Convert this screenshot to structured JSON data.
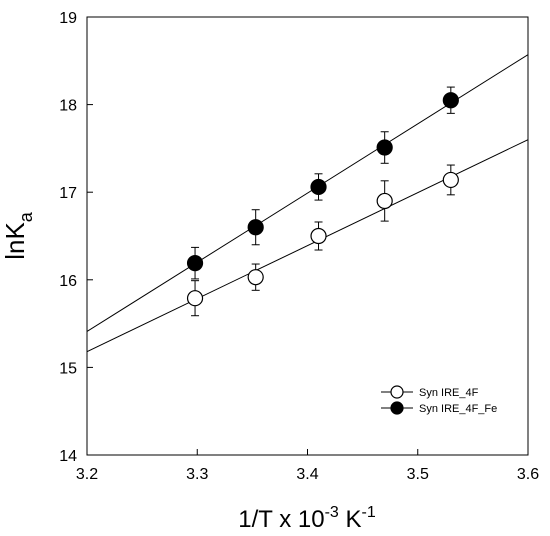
{
  "chart_data": {
    "type": "scatter",
    "xlabel": {
      "base": "1/T x 10",
      "exp": "-3",
      "unit": " K",
      "unit_exp": "-1"
    },
    "ylabel": {
      "base": "lnK",
      "sub": "a"
    },
    "xlim": [
      3.2,
      3.6
    ],
    "ylim": [
      14,
      19
    ],
    "x_ticks": [
      "3.2",
      "3.3",
      "3.4",
      "3.5",
      "3.6"
    ],
    "x_tick_values": [
      3.2,
      3.3,
      3.4,
      3.5,
      3.6
    ],
    "y_ticks": [
      "14",
      "15",
      "16",
      "17",
      "18",
      "19"
    ],
    "y_tick_values": [
      14,
      15,
      16,
      17,
      18,
      19
    ],
    "grid": false,
    "legend_position": "lower-right",
    "series": [
      {
        "name": "Syn IRE_4F",
        "marker": "open-circle",
        "color": "#000000",
        "x": [
          3.298,
          3.353,
          3.41,
          3.47,
          3.53
        ],
        "y": [
          15.79,
          16.03,
          16.5,
          16.9,
          17.14
        ],
        "yerr": [
          0.2,
          0.15,
          0.16,
          0.23,
          0.17
        ],
        "fit_line": {
          "slope": 6.05,
          "intercept": -4.18
        }
      },
      {
        "name": "Syn IRE_4F_Fe",
        "marker": "filled-circle",
        "color": "#000000",
        "x": [
          3.298,
          3.353,
          3.41,
          3.47,
          3.53
        ],
        "y": [
          16.19,
          16.6,
          17.06,
          17.51,
          18.05
        ],
        "yerr": [
          0.18,
          0.2,
          0.15,
          0.18,
          0.15
        ],
        "fit_line": {
          "slope": 7.9,
          "intercept": -9.87
        }
      }
    ]
  }
}
